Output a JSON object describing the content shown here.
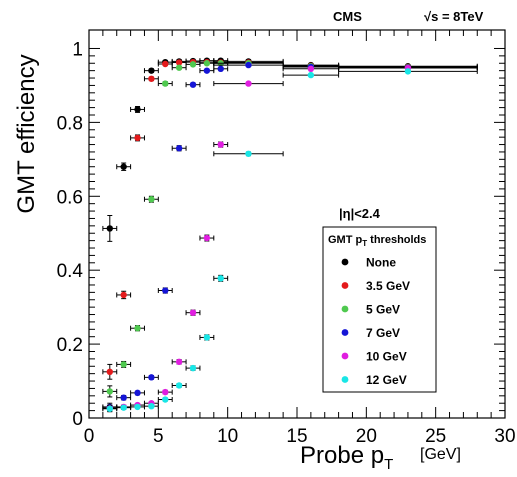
{
  "chart_data": {
    "type": "scatter",
    "title": "",
    "header_left": "CMS",
    "header_right_sqrt": "√",
    "header_right_rest": "s = 8TeV",
    "xlabel_main": "Probe p",
    "xlabel_sub": "T",
    "xlabel_unit": "[GeV]",
    "ylabel": "GMT efficiency",
    "xlim": [
      0,
      30
    ],
    "ylim": [
      0,
      1.05
    ],
    "x_ticks": [
      "0",
      "5",
      "10",
      "15",
      "20",
      "25",
      "30"
    ],
    "y_ticks": [
      "0",
      "0.2",
      "0.4",
      "0.6",
      "0.8",
      "1"
    ],
    "eta_label": "|η|<2.4",
    "legend_title_main": "GMT p",
    "legend_title_sub": "T",
    "legend_title_rest": " thresholds",
    "legend_placement": "center-right",
    "series": [
      {
        "name": "None",
        "color": "#000000",
        "points": [
          {
            "x": 1.5,
            "y": 0.513,
            "xerr": 0.5,
            "yerr": 0.035
          },
          {
            "x": 2.5,
            "y": 0.68,
            "xerr": 0.5,
            "yerr": 0.01
          },
          {
            "x": 3.5,
            "y": 0.835,
            "xerr": 0.5,
            "yerr": 0.008
          },
          {
            "x": 4.5,
            "y": 0.94,
            "xerr": 0.5,
            "yerr": 0.005
          },
          {
            "x": 5.5,
            "y": 0.963,
            "xerr": 0.5,
            "yerr": 0.004
          },
          {
            "x": 6.5,
            "y": 0.965,
            "xerr": 0.5,
            "yerr": 0.004
          },
          {
            "x": 7.5,
            "y": 0.966,
            "xerr": 0.5,
            "yerr": 0.004
          },
          {
            "x": 8.5,
            "y": 0.967,
            "xerr": 0.5,
            "yerr": 0.004
          },
          {
            "x": 9.5,
            "y": 0.967,
            "xerr": 0.5,
            "yerr": 0.004
          },
          {
            "x": 11.5,
            "y": 0.965,
            "xerr": 2.5,
            "yerr": 0.003
          },
          {
            "x": 16,
            "y": 0.955,
            "xerr": 2,
            "yerr": 0.003
          },
          {
            "x": 23,
            "y": 0.952,
            "xerr": 5,
            "yerr": 0.003
          }
        ]
      },
      {
        "name": "3.5 GeV",
        "color": "#e41a1c",
        "points": [
          {
            "x": 1.5,
            "y": 0.125,
            "xerr": 0.5,
            "yerr": 0.02
          },
          {
            "x": 2.5,
            "y": 0.333,
            "xerr": 0.5,
            "yerr": 0.01
          },
          {
            "x": 3.5,
            "y": 0.758,
            "xerr": 0.5,
            "yerr": 0.008
          },
          {
            "x": 4.5,
            "y": 0.918,
            "xerr": 0.5,
            "yerr": 0.005
          },
          {
            "x": 5.5,
            "y": 0.958,
            "xerr": 0.5,
            "yerr": 0.004
          },
          {
            "x": 6.5,
            "y": 0.962,
            "xerr": 0.5,
            "yerr": 0.004
          },
          {
            "x": 7.5,
            "y": 0.963,
            "xerr": 0.5,
            "yerr": 0.004
          },
          {
            "x": 8.5,
            "y": 0.963,
            "xerr": 0.5,
            "yerr": 0.004
          },
          {
            "x": 9.5,
            "y": 0.962,
            "xerr": 0.5,
            "yerr": 0.004
          },
          {
            "x": 11.5,
            "y": 0.962,
            "xerr": 2.5,
            "yerr": 0.003
          },
          {
            "x": 16,
            "y": 0.953,
            "xerr": 2,
            "yerr": 0.003
          },
          {
            "x": 23,
            "y": 0.95,
            "xerr": 5,
            "yerr": 0.003
          }
        ]
      },
      {
        "name": "5 GeV",
        "color": "#4fc94f",
        "points": [
          {
            "x": 1.5,
            "y": 0.072,
            "xerr": 0.5,
            "yerr": 0.015
          },
          {
            "x": 2.5,
            "y": 0.145,
            "xerr": 0.5,
            "yerr": 0.008
          },
          {
            "x": 3.5,
            "y": 0.243,
            "xerr": 0.5,
            "yerr": 0.007
          },
          {
            "x": 4.5,
            "y": 0.592,
            "xerr": 0.5,
            "yerr": 0.008
          },
          {
            "x": 5.5,
            "y": 0.905,
            "xerr": 0.5,
            "yerr": 0.005
          },
          {
            "x": 6.5,
            "y": 0.948,
            "xerr": 0.5,
            "yerr": 0.004
          },
          {
            "x": 7.5,
            "y": 0.957,
            "xerr": 0.5,
            "yerr": 0.004
          },
          {
            "x": 8.5,
            "y": 0.96,
            "xerr": 0.5,
            "yerr": 0.004
          },
          {
            "x": 9.5,
            "y": 0.96,
            "xerr": 0.5,
            "yerr": 0.004
          },
          {
            "x": 11.5,
            "y": 0.96,
            "xerr": 2.5,
            "yerr": 0.003
          },
          {
            "x": 16,
            "y": 0.952,
            "xerr": 2,
            "yerr": 0.003
          },
          {
            "x": 23,
            "y": 0.949,
            "xerr": 5,
            "yerr": 0.003
          }
        ]
      },
      {
        "name": "7 GeV",
        "color": "#1515d6",
        "points": [
          {
            "x": 1.5,
            "y": 0.03,
            "xerr": 0.5,
            "yerr": 0.01
          },
          {
            "x": 2.5,
            "y": 0.055,
            "xerr": 0.5,
            "yerr": 0.006
          },
          {
            "x": 3.5,
            "y": 0.068,
            "xerr": 0.5,
            "yerr": 0.005
          },
          {
            "x": 4.5,
            "y": 0.11,
            "xerr": 0.5,
            "yerr": 0.005
          },
          {
            "x": 5.5,
            "y": 0.345,
            "xerr": 0.5,
            "yerr": 0.007
          },
          {
            "x": 6.5,
            "y": 0.73,
            "xerr": 0.5,
            "yerr": 0.007
          },
          {
            "x": 7.5,
            "y": 0.902,
            "xerr": 0.5,
            "yerr": 0.005
          },
          {
            "x": 8.5,
            "y": 0.94,
            "xerr": 0.5,
            "yerr": 0.004
          },
          {
            "x": 9.5,
            "y": 0.945,
            "xerr": 0.5,
            "yerr": 0.004
          },
          {
            "x": 11.5,
            "y": 0.955,
            "xerr": 2.5,
            "yerr": 0.003
          },
          {
            "x": 16,
            "y": 0.95,
            "xerr": 2,
            "yerr": 0.003
          },
          {
            "x": 23,
            "y": 0.948,
            "xerr": 5,
            "yerr": 0.003
          }
        ]
      },
      {
        "name": "10 GeV",
        "color": "#e01ee0",
        "points": [
          {
            "x": 1.5,
            "y": 0.027,
            "xerr": 0.5,
            "yerr": 0.008
          },
          {
            "x": 2.5,
            "y": 0.03,
            "xerr": 0.5,
            "yerr": 0.005
          },
          {
            "x": 3.5,
            "y": 0.035,
            "xerr": 0.5,
            "yerr": 0.004
          },
          {
            "x": 4.5,
            "y": 0.04,
            "xerr": 0.5,
            "yerr": 0.004
          },
          {
            "x": 5.5,
            "y": 0.07,
            "xerr": 0.5,
            "yerr": 0.005
          },
          {
            "x": 6.5,
            "y": 0.152,
            "xerr": 0.5,
            "yerr": 0.006
          },
          {
            "x": 7.5,
            "y": 0.285,
            "xerr": 0.5,
            "yerr": 0.007
          },
          {
            "x": 8.5,
            "y": 0.487,
            "xerr": 0.5,
            "yerr": 0.008
          },
          {
            "x": 9.5,
            "y": 0.74,
            "xerr": 0.5,
            "yerr": 0.007
          },
          {
            "x": 11.5,
            "y": 0.905,
            "xerr": 2.5,
            "yerr": 0.004
          },
          {
            "x": 16,
            "y": 0.945,
            "xerr": 2,
            "yerr": 0.003
          },
          {
            "x": 23,
            "y": 0.947,
            "xerr": 5,
            "yerr": 0.003
          }
        ]
      },
      {
        "name": "12 GeV",
        "color": "#19e6e6",
        "points": [
          {
            "x": 1.5,
            "y": 0.025,
            "xerr": 0.5,
            "yerr": 0.008
          },
          {
            "x": 2.5,
            "y": 0.028,
            "xerr": 0.5,
            "yerr": 0.005
          },
          {
            "x": 3.5,
            "y": 0.03,
            "xerr": 0.5,
            "yerr": 0.004
          },
          {
            "x": 4.5,
            "y": 0.032,
            "xerr": 0.5,
            "yerr": 0.004
          },
          {
            "x": 5.5,
            "y": 0.05,
            "xerr": 0.5,
            "yerr": 0.004
          },
          {
            "x": 6.5,
            "y": 0.088,
            "xerr": 0.5,
            "yerr": 0.005
          },
          {
            "x": 7.5,
            "y": 0.135,
            "xerr": 0.5,
            "yerr": 0.006
          },
          {
            "x": 8.5,
            "y": 0.218,
            "xerr": 0.5,
            "yerr": 0.007
          },
          {
            "x": 9.5,
            "y": 0.378,
            "xerr": 0.5,
            "yerr": 0.008
          },
          {
            "x": 11.5,
            "y": 0.715,
            "xerr": 2.5,
            "yerr": 0.005
          },
          {
            "x": 16,
            "y": 0.928,
            "xerr": 2,
            "yerr": 0.003
          },
          {
            "x": 23,
            "y": 0.938,
            "xerr": 5,
            "yerr": 0.003
          }
        ]
      }
    ]
  }
}
